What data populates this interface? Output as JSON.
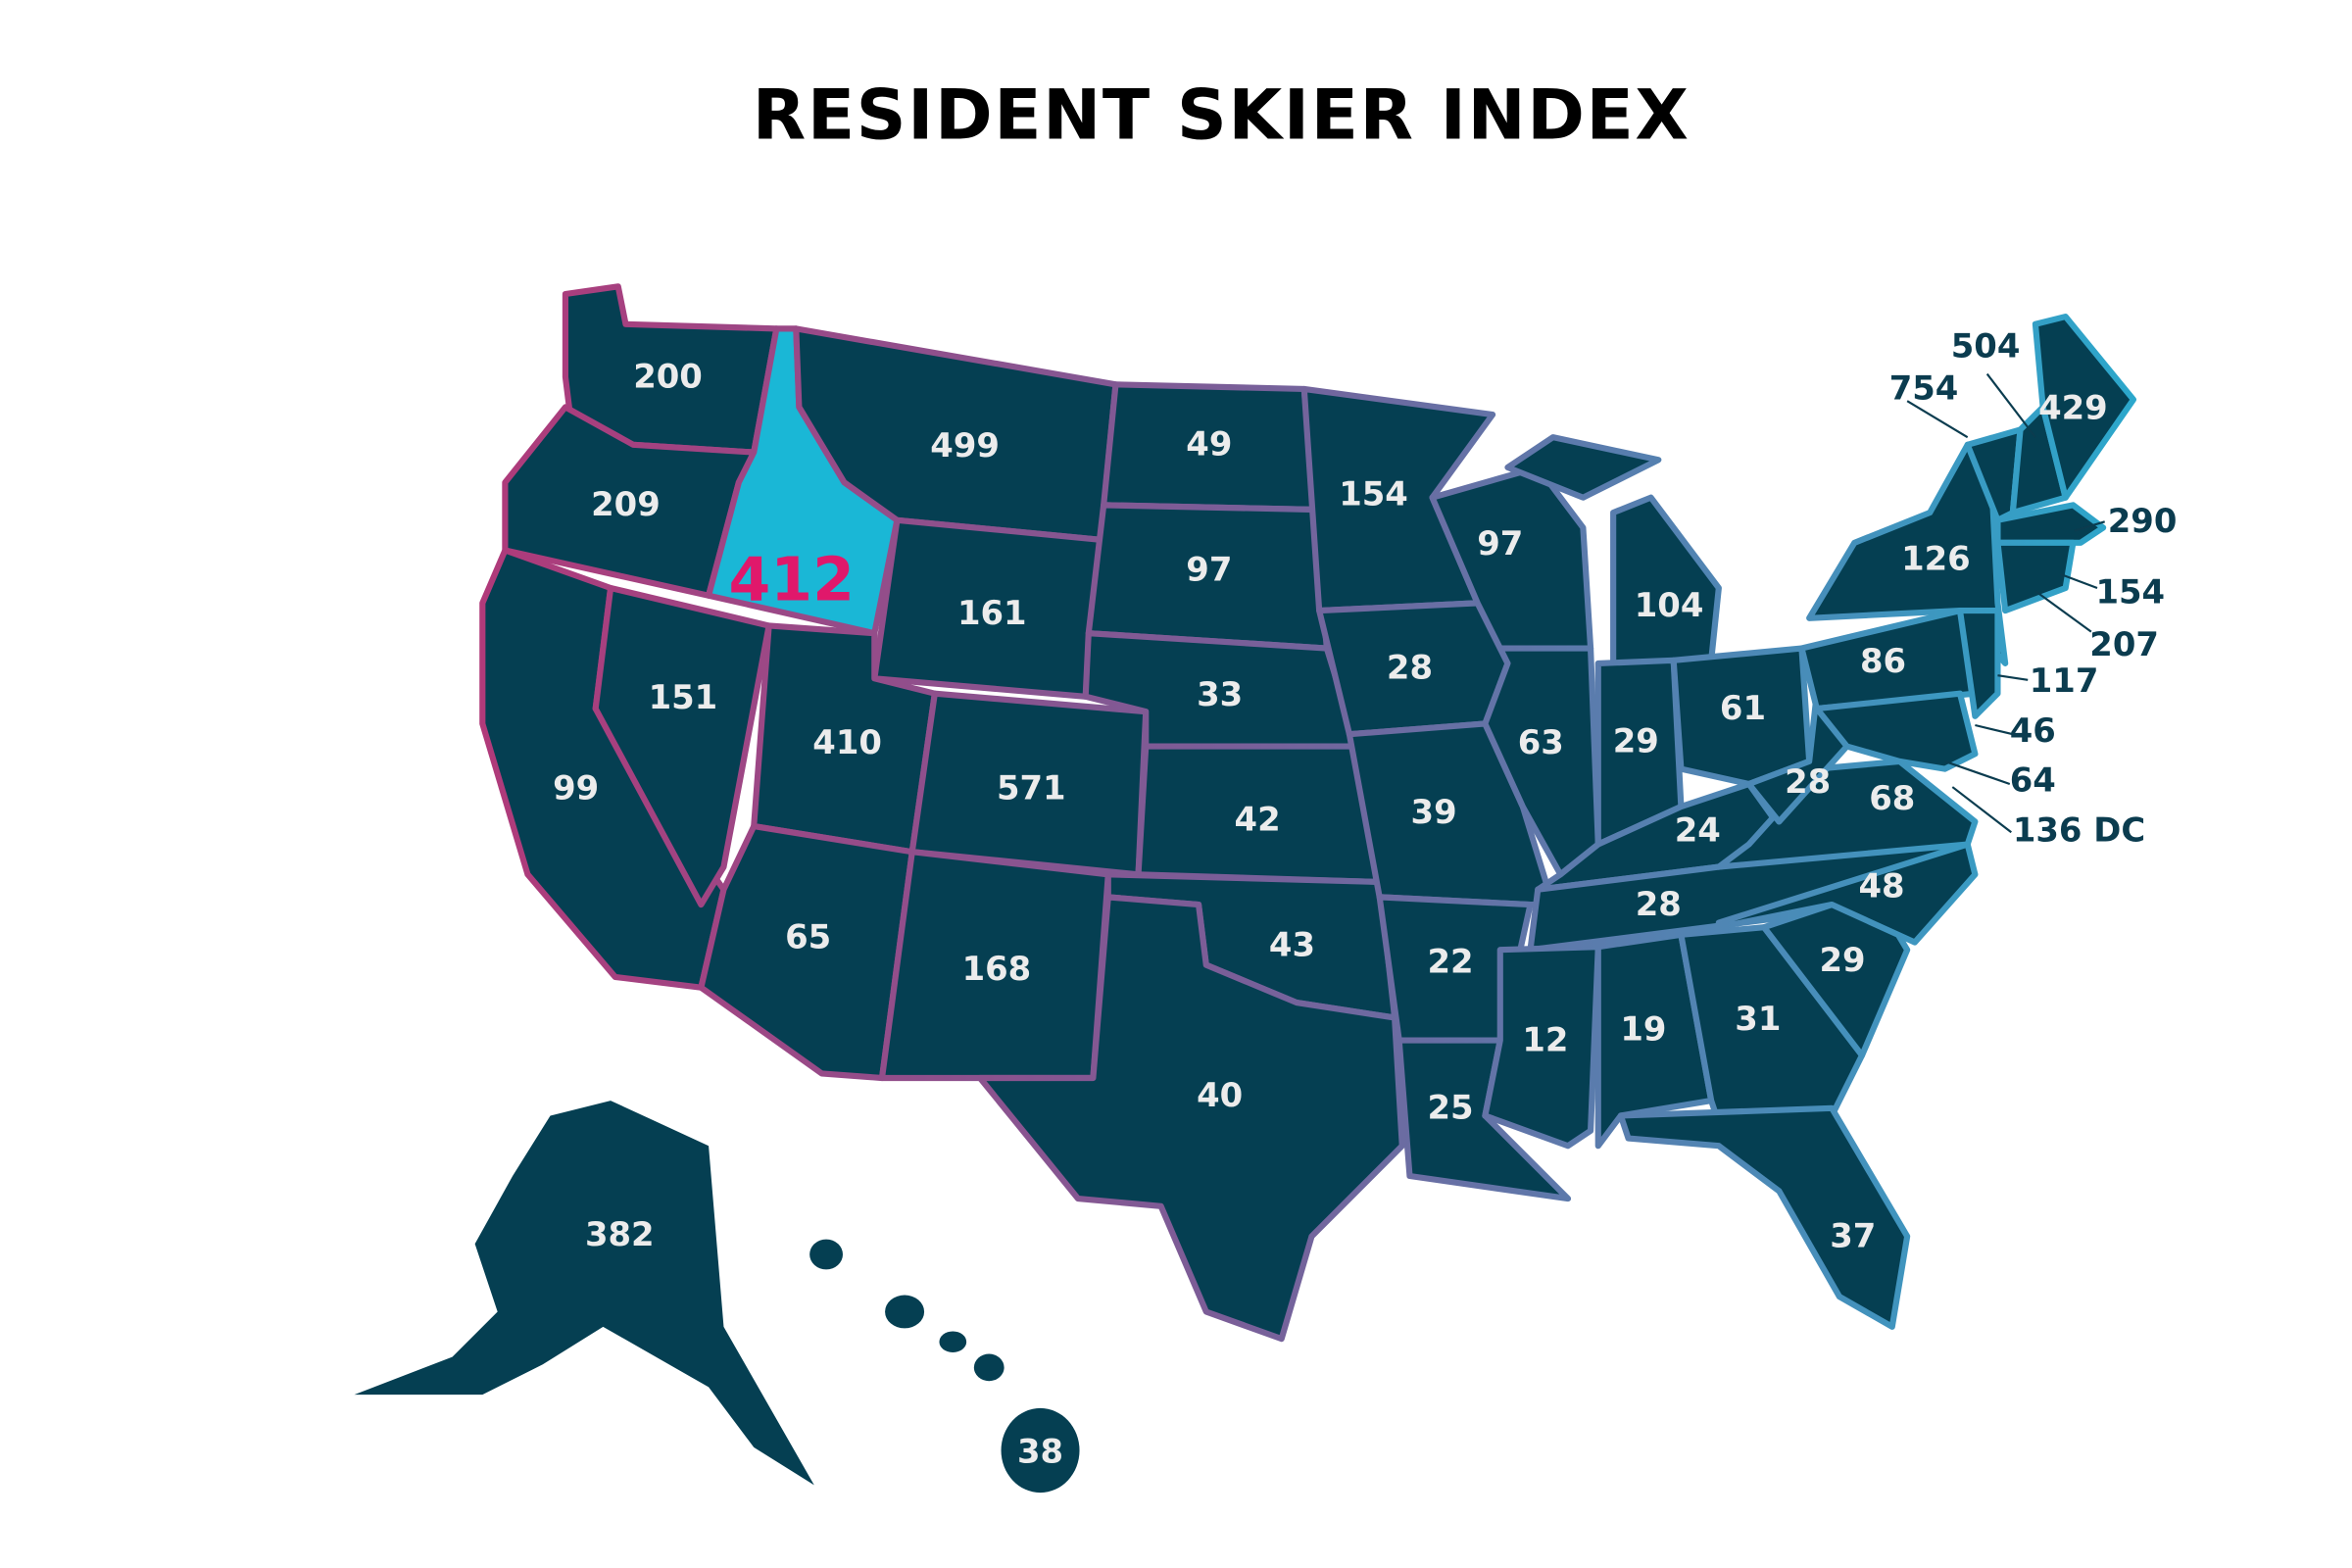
{
  "title": "RESIDENT SKIER INDEX",
  "colors": {
    "state_fill": "#053f52",
    "highlight_fill": "#1ab7d6",
    "highlight_text": "#e0186b",
    "border_west": "#b03a7a",
    "border_east": "#2ba8cc"
  },
  "highlighted_state": "ID",
  "values": {
    "WA": "200",
    "OR": "209",
    "CA": "99",
    "NV": "151",
    "ID": "412",
    "MT": "499",
    "WY": "161",
    "UT": "410",
    "CO": "571",
    "AZ": "65",
    "NM": "168",
    "ND": "49",
    "SD": "97",
    "NE": "33",
    "KS": "42",
    "OK": "43",
    "TX": "40",
    "MN": "154",
    "IA": "28",
    "MO": "39",
    "AR": "22",
    "LA": "25",
    "WI": "97",
    "IL": "63",
    "MI": "104",
    "IN": "29",
    "OH": "61",
    "KY": "24",
    "TN": "28",
    "MS": "12",
    "AL": "19",
    "GA": "31",
    "FL": "37",
    "SC": "29",
    "NC": "48",
    "VA": "68",
    "WV": "28",
    "PA": "86",
    "NY": "126",
    "VT": "754",
    "NH": "504",
    "ME": "429",
    "MA": "290",
    "RI": "154",
    "CT": "207",
    "NJ": "117",
    "DE": "46",
    "MD": "64",
    "DC": "136 DC",
    "AK": "382",
    "HI": "38"
  }
}
